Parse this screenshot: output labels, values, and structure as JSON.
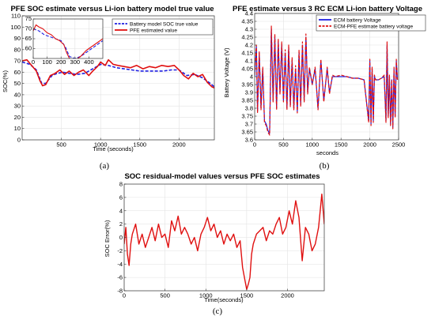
{
  "chart_data": [
    {
      "type": "line",
      "panel": "a",
      "caption": "(a)",
      "title": "PFE SOC estimate versus Li-ion battery model true value",
      "xlabel": "Time (seconds)",
      "ylabel": "SOC(%)",
      "xlim": [
        0,
        2450
      ],
      "ylim": [
        0,
        110
      ],
      "xticks": [
        500,
        1000,
        1500,
        2000
      ],
      "yticks": [
        0,
        10,
        20,
        30,
        40,
        50,
        60,
        70,
        80,
        90,
        100,
        110
      ],
      "grid": true,
      "legend_position": "top-right",
      "series": [
        {
          "name": "Battery model SOC true value",
          "color": "#1f1fe0",
          "style": "dashed",
          "x": [
            0,
            100,
            180,
            250,
            300,
            380,
            450,
            520,
            600,
            700,
            800,
            900,
            1000,
            1100,
            1200,
            1300,
            1400,
            1500,
            1600,
            1700,
            1800,
            1900,
            2000,
            2100,
            2200,
            2300,
            2400,
            2450
          ],
          "y": [
            69,
            67,
            62,
            50,
            50,
            57,
            59,
            60,
            59,
            58,
            59,
            63,
            67,
            66,
            64,
            63,
            62,
            61,
            61,
            61,
            61,
            62,
            62,
            57,
            58,
            55,
            50,
            47
          ]
        },
        {
          "name": "PFE estimated value",
          "color": "#e01010",
          "style": "solid",
          "x": [
            0,
            60,
            120,
            180,
            230,
            260,
            300,
            360,
            420,
            480,
            540,
            600,
            660,
            720,
            780,
            850,
            900,
            960,
            1000,
            1060,
            1100,
            1160,
            1220,
            1300,
            1380,
            1460,
            1540,
            1620,
            1700,
            1780,
            1860,
            1940,
            2000,
            2060,
            2120,
            2180,
            2240,
            2300,
            2360,
            2420,
            2450
          ],
          "y": [
            70,
            71,
            66,
            61,
            52,
            48,
            49,
            57,
            59,
            62,
            58,
            61,
            57,
            60,
            62,
            57,
            61,
            65,
            69,
            66,
            71,
            67,
            66,
            65,
            64,
            66,
            63,
            65,
            64,
            66,
            65,
            66,
            62,
            57,
            54,
            59,
            56,
            58,
            51,
            47,
            46
          ]
        }
      ],
      "inset": {
        "xlim": [
          0,
          500
        ],
        "ylim": [
          55,
          75
        ],
        "xticks": [
          0,
          100,
          200,
          300,
          400
        ],
        "yticks": [
          60,
          65,
          70,
          75
        ],
        "series": [
          {
            "name": "Battery model SOC true value",
            "color": "#1f1fe0",
            "style": "dashed",
            "x": [
              0,
              40,
              80,
              120,
              160,
              200,
              230,
              260,
              300,
              340,
              380,
              420,
              460,
              500
            ],
            "y": [
              70,
              69,
              67,
              66,
              65,
              64,
              61,
              56,
              55,
              56,
              58,
              60,
              62,
              64
            ]
          },
          {
            "name": "PFE estimated value",
            "color": "#e01010",
            "style": "solid",
            "x": [
              0,
              20,
              40,
              70,
              100,
              130,
              160,
              190,
              220,
              240,
              260,
              300,
              340,
              380,
              420,
              460,
              500
            ],
            "y": [
              69,
              72,
              71,
              70,
              68,
              67,
              65,
              64,
              62,
              58,
              55,
              54,
              56,
              59,
              61,
              63,
              65
            ]
          }
        ]
      }
    },
    {
      "type": "line",
      "panel": "b",
      "caption": "(b)",
      "title": "PFE estimate versus 3 RC ECM Li-ion battery Voltage",
      "xlabel": "seconds",
      "ylabel": "Battery Voltage (V)",
      "xlim": [
        0,
        2500
      ],
      "ylim": [
        3.6,
        4.4
      ],
      "xticks": [
        0,
        500,
        1000,
        1500,
        2000,
        2500
      ],
      "yticks": [
        3.6,
        3.65,
        3.7,
        3.75,
        3.8,
        3.85,
        3.9,
        3.95,
        4,
        4.05,
        4.1,
        4.15,
        4.2,
        4.25,
        4.3,
        4.35,
        4.4
      ],
      "ytick_labels": [
        "3.6",
        "3.65",
        "3.7",
        "3.75",
        "3.8",
        "3.85",
        "3.9",
        "3.95",
        "4",
        "4.05",
        "4.1",
        "4.15",
        "4.2",
        "4.25",
        "4.3",
        "4.35",
        "4.4"
      ],
      "grid": true,
      "legend_position": "top-right",
      "series": [
        {
          "name": "ECM battery Voltage",
          "color": "#1f1fe0",
          "style": "solid",
          "x": [
            0,
            30,
            50,
            80,
            110,
            140,
            170,
            200,
            230,
            260,
            290,
            320,
            350,
            380,
            410,
            440,
            470,
            500,
            530,
            560,
            590,
            620,
            650,
            680,
            710,
            740,
            770,
            800,
            830,
            860,
            890,
            920,
            950,
            1000,
            1050,
            1100,
            1150,
            1200,
            1260,
            1300,
            1350,
            1400,
            1500,
            1600,
            1700,
            1800,
            1900,
            1980,
            2000,
            2020,
            2040,
            2060,
            2080,
            2100,
            2150,
            2200,
            2250,
            2280,
            2300,
            2320,
            2340,
            2360,
            2380,
            2400,
            2420,
            2440,
            2460,
            2480
          ],
          "y": [
            4.0,
            4.19,
            3.78,
            4.15,
            3.8,
            4.05,
            3.72,
            3.7,
            3.66,
            3.64,
            4.3,
            3.85,
            4.25,
            3.8,
            4.22,
            3.9,
            4.2,
            3.85,
            4.15,
            3.8,
            4.18,
            3.82,
            4.1,
            3.8,
            4.05,
            3.78,
            4.15,
            3.82,
            4.2,
            3.85,
            4.25,
            3.9,
            4.05,
            3.95,
            4.05,
            3.8,
            4.1,
            3.85,
            4.05,
            3.9,
            4.0,
            4.0,
            4.0,
            4.0,
            3.99,
            3.99,
            3.98,
            3.72,
            4.1,
            3.7,
            4.05,
            3.72,
            4.0,
            3.98,
            3.98,
            3.99,
            4.0,
            3.72,
            4.2,
            3.75,
            4.0,
            3.7,
            3.98,
            3.68,
            4.05,
            3.75,
            4.1,
            3.98
          ]
        },
        {
          "name": "ECM-PFE estimate battery voltage",
          "color": "#e01010",
          "style": "dashed",
          "x": [
            0,
            30,
            50,
            80,
            110,
            140,
            170,
            200,
            230,
            260,
            290,
            320,
            350,
            380,
            410,
            440,
            470,
            500,
            530,
            560,
            590,
            620,
            650,
            680,
            710,
            740,
            770,
            800,
            830,
            860,
            890,
            920,
            950,
            1000,
            1050,
            1100,
            1150,
            1200,
            1260,
            1300,
            1350,
            1400,
            1500,
            1600,
            1700,
            1800,
            1900,
            1980,
            2000,
            2020,
            2040,
            2060,
            2080,
            2100,
            2150,
            2200,
            2250,
            2280,
            2300,
            2320,
            2340,
            2360,
            2380,
            2400,
            2420,
            2440,
            2460,
            2480
          ],
          "y": [
            4.01,
            4.2,
            3.77,
            4.16,
            3.79,
            4.06,
            3.71,
            3.69,
            3.65,
            3.63,
            4.32,
            3.84,
            4.27,
            3.79,
            4.24,
            3.89,
            4.22,
            3.84,
            4.17,
            3.79,
            4.2,
            3.81,
            4.12,
            3.79,
            4.07,
            3.77,
            4.17,
            3.81,
            4.22,
            3.84,
            4.27,
            3.89,
            4.06,
            3.95,
            4.06,
            3.79,
            4.11,
            3.84,
            4.06,
            3.89,
            4.01,
            4.0,
            4.01,
            4.0,
            3.99,
            3.99,
            3.98,
            3.71,
            4.11,
            3.69,
            4.06,
            3.71,
            4.01,
            3.98,
            3.98,
            3.99,
            4.01,
            3.71,
            4.22,
            3.74,
            4.01,
            3.69,
            3.98,
            3.67,
            4.06,
            3.74,
            4.11,
            3.98
          ]
        }
      ]
    },
    {
      "type": "line",
      "panel": "c",
      "caption": "(c)",
      "title": "SOC residual-model values versus PFE SOC estimates",
      "xlabel": "Time(seconds)",
      "ylabel": "SOC Error(%)",
      "xlim": [
        0,
        2450
      ],
      "ylim": [
        -8,
        8
      ],
      "xticks": [
        0,
        500,
        1000,
        1500,
        2000
      ],
      "yticks": [
        -8,
        -6,
        -4,
        -2,
        0,
        2,
        4,
        6,
        8
      ],
      "grid": true,
      "series": [
        {
          "name": "",
          "color": "#e01010",
          "style": "solid",
          "x": [
            0,
            20,
            40,
            60,
            80,
            100,
            140,
            180,
            220,
            260,
            300,
            340,
            380,
            420,
            460,
            500,
            540,
            580,
            620,
            660,
            700,
            740,
            780,
            820,
            860,
            900,
            940,
            980,
            1020,
            1060,
            1100,
            1140,
            1180,
            1220,
            1260,
            1300,
            1340,
            1380,
            1420,
            1450,
            1480,
            1500,
            1520,
            1540,
            1560,
            1580,
            1620,
            1660,
            1700,
            1740,
            1780,
            1820,
            1860,
            1900,
            1940,
            1980,
            2020,
            2060,
            2100,
            2140,
            2180,
            2220,
            2260,
            2300,
            2340,
            2380,
            2420,
            2450
          ],
          "y": [
            -1,
            1.5,
            -2.5,
            -4.2,
            -1,
            0.5,
            2,
            -1,
            0.5,
            -1.5,
            0,
            1.5,
            -0.5,
            2,
            0,
            0.5,
            -1.5,
            2.5,
            1,
            3.2,
            0.5,
            1.5,
            0.5,
            -1,
            0,
            -2,
            0.5,
            1.5,
            3,
            1,
            2,
            0,
            1,
            -1,
            0.5,
            -0.5,
            0.5,
            -1.5,
            -0.5,
            -4.5,
            -6.5,
            -7.8,
            -7,
            -6,
            -2.5,
            -1,
            0.5,
            1,
            1.5,
            -0.5,
            1,
            0.5,
            2,
            3,
            0.5,
            1.5,
            4,
            2,
            5.5,
            3,
            -3.5,
            1.5,
            0.5,
            -2,
            -1,
            1.5,
            6.5,
            2
          ]
        }
      ]
    }
  ]
}
